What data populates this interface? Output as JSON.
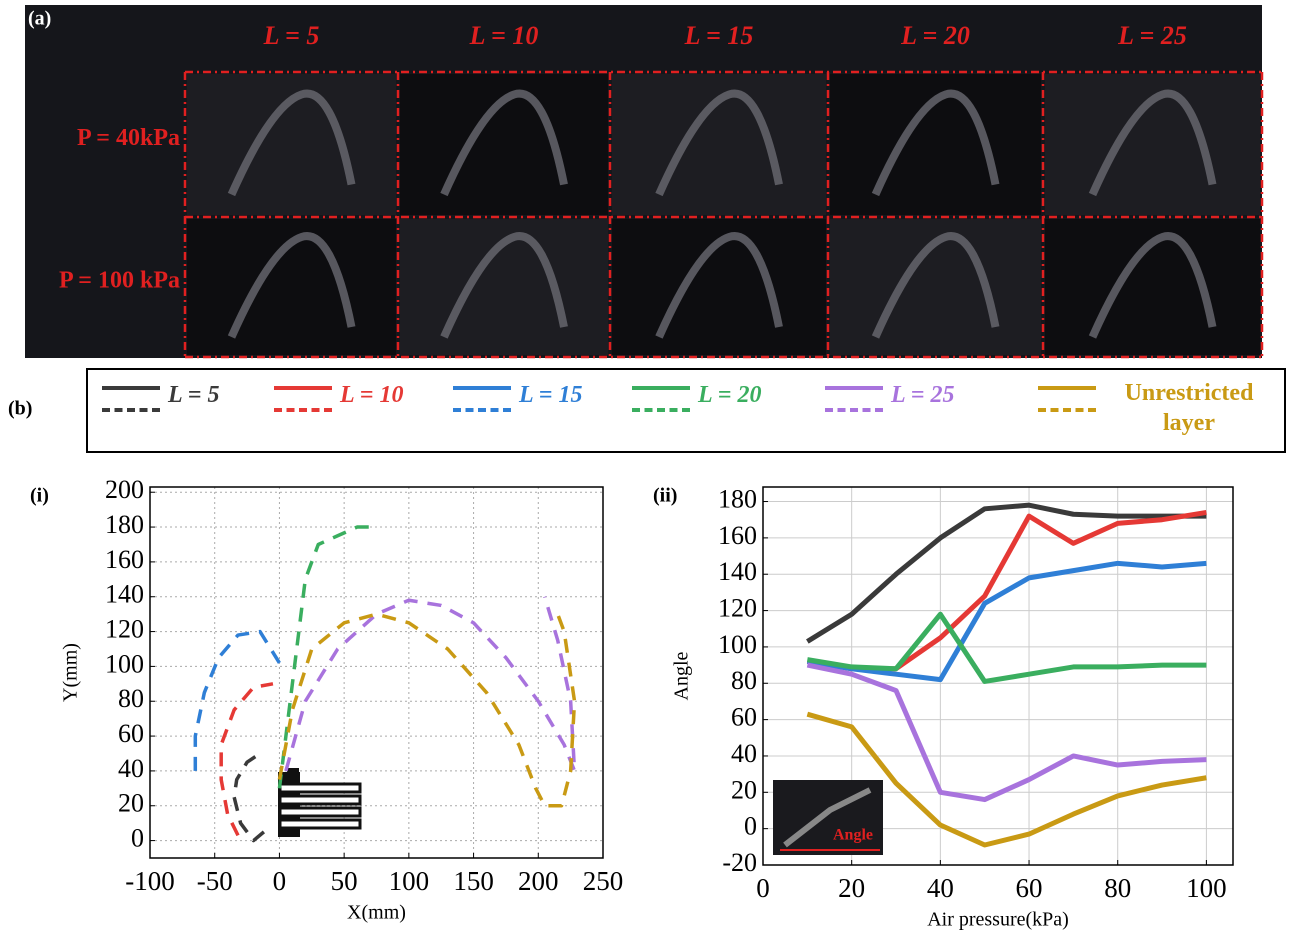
{
  "panel_a": {
    "label": "(a)",
    "columns": [
      "L = 5",
      "L = 10",
      "L = 15",
      "L = 20",
      "L = 25"
    ],
    "rows": [
      "P = 40kPa",
      "P = 100 kPa"
    ]
  },
  "legend_label": "(b)",
  "chart_data": [
    {
      "type": "line",
      "panel": "(i)",
      "x_label": "X(mm)",
      "y_label": "Y(mm)",
      "dashed": true,
      "grid": true,
      "xlim": [
        -100,
        250
      ],
      "ylim": [
        -10,
        203
      ],
      "xticks": [
        -100,
        -50,
        0,
        50,
        100,
        150,
        200,
        250
      ],
      "yticks": [
        0,
        20,
        40,
        60,
        80,
        100,
        120,
        140,
        160,
        180,
        200
      ],
      "series": [
        {
          "color": "#3a3a3a",
          "x": [
            -12,
            -20,
            -30,
            -35,
            -33,
            -25,
            -15
          ],
          "y": [
            5,
            0,
            10,
            25,
            35,
            45,
            50
          ]
        },
        {
          "color": "#e53935",
          "x": [
            -32,
            -40,
            -45,
            -45,
            -35,
            -20,
            -5
          ],
          "y": [
            3,
            15,
            35,
            55,
            75,
            88,
            90
          ]
        },
        {
          "color": "#2f7fd6",
          "x": [
            -65,
            -65,
            -58,
            -47,
            -32,
            -15,
            0
          ],
          "y": [
            40,
            60,
            85,
            105,
            118,
            120,
            102
          ]
        },
        {
          "color": "#3aae5f",
          "x": [
            0,
            5,
            10,
            15,
            20,
            30,
            45,
            60,
            75
          ],
          "y": [
            30,
            60,
            90,
            120,
            150,
            170,
            175,
            180,
            180
          ]
        },
        {
          "color": "#a873dd",
          "x": [
            5,
            20,
            45,
            75,
            100,
            125,
            150,
            175,
            200,
            220,
            228,
            225,
            215,
            205
          ],
          "y": [
            40,
            80,
            110,
            130,
            138,
            135,
            125,
            105,
            80,
            55,
            40,
            80,
            115,
            140
          ]
        },
        {
          "color": "#c99a14",
          "x": [
            0,
            10,
            25,
            50,
            75,
            100,
            130,
            160,
            185,
            198,
            205,
            218,
            225,
            228,
            220,
            215
          ],
          "y": [
            35,
            75,
            110,
            125,
            130,
            125,
            110,
            85,
            55,
            30,
            20,
            20,
            40,
            80,
            120,
            130
          ]
        }
      ]
    },
    {
      "type": "line",
      "panel": "(ii)",
      "x_label": "Air pressure(kPa)",
      "y_label": "Angle",
      "inset_label": "Angle",
      "grid": true,
      "xlim": [
        0,
        106
      ],
      "ylim": [
        -20,
        188
      ],
      "xticks": [
        0,
        20,
        40,
        60,
        80,
        100
      ],
      "yticks": [
        -20,
        0,
        20,
        40,
        60,
        80,
        100,
        120,
        140,
        160,
        180
      ],
      "x": [
        10,
        20,
        30,
        40,
        50,
        60,
        70,
        80,
        90,
        100
      ],
      "series": [
        {
          "name": "L = 5",
          "color": "#3a3a3a",
          "values": [
            103,
            118,
            140,
            160,
            176,
            178,
            173,
            172,
            172,
            172
          ]
        },
        {
          "name": "L = 10",
          "color": "#e53935",
          "values": [
            92,
            88,
            88,
            105,
            128,
            172,
            157,
            168,
            170,
            174
          ]
        },
        {
          "name": "L = 15",
          "color": "#2f7fd6",
          "values": [
            92,
            88,
            85,
            82,
            124,
            138,
            142,
            146,
            144,
            146
          ]
        },
        {
          "name": "L = 20",
          "color": "#3aae5f",
          "values": [
            93,
            89,
            88,
            118,
            81,
            85,
            89,
            89,
            90,
            90
          ]
        },
        {
          "name": "L = 25",
          "color": "#a873dd",
          "values": [
            90,
            85,
            76,
            20,
            16,
            27,
            40,
            35,
            37,
            38
          ]
        },
        {
          "name": "Unrestricted layer",
          "color": "#c99a14",
          "values": [
            63,
            56,
            25,
            2,
            -9,
            -3,
            8,
            18,
            24,
            28
          ]
        }
      ]
    }
  ]
}
